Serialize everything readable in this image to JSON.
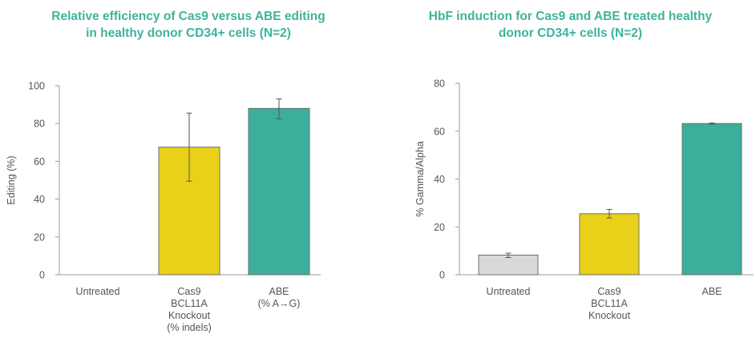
{
  "chart_data": [
    {
      "type": "bar",
      "title": "Relative efficiency of Cas9 versus ABE editing\nin healthy donor CD34+ cells (N=2)",
      "xlabel": "",
      "ylabel": "Editing (%)",
      "ylim": [
        0,
        100
      ],
      "yticks": [
        "0",
        "20",
        "40",
        "60",
        "80",
        "100"
      ],
      "categories": [
        [
          "Untreated"
        ],
        [
          "Cas9",
          "BCL11A",
          "Knockout",
          "(% indels)"
        ],
        [
          "ABE",
          "(% A→G)"
        ]
      ],
      "values": [
        0,
        67.5,
        88
      ],
      "error": [
        [
          0,
          0
        ],
        [
          49.5,
          85.5
        ],
        [
          82.5,
          93
        ]
      ],
      "colors": [
        "#d9d9d9",
        "#e8d118",
        "#3aaf9b"
      ]
    },
    {
      "type": "bar",
      "title": "HbF induction for Cas9 and ABE treated healthy\ndonor CD34+ cells (N=2)",
      "xlabel": "",
      "ylabel": "% Gamma/Alpha",
      "ylim": [
        0,
        80
      ],
      "yticks": [
        "0",
        "20",
        "40",
        "60",
        "80"
      ],
      "categories": [
        [
          "Untreated"
        ],
        [
          "Cas9",
          "BCL11A",
          "Knockout"
        ],
        [
          "ABE"
        ]
      ],
      "values": [
        8.2,
        25.5,
        63.2
      ],
      "error": [
        [
          7.2,
          9.0
        ],
        [
          23.7,
          27.3
        ],
        [
          62.9,
          63.4
        ]
      ],
      "colors": [
        "#d9d9d9",
        "#e8d118",
        "#3aaf9b"
      ]
    }
  ]
}
